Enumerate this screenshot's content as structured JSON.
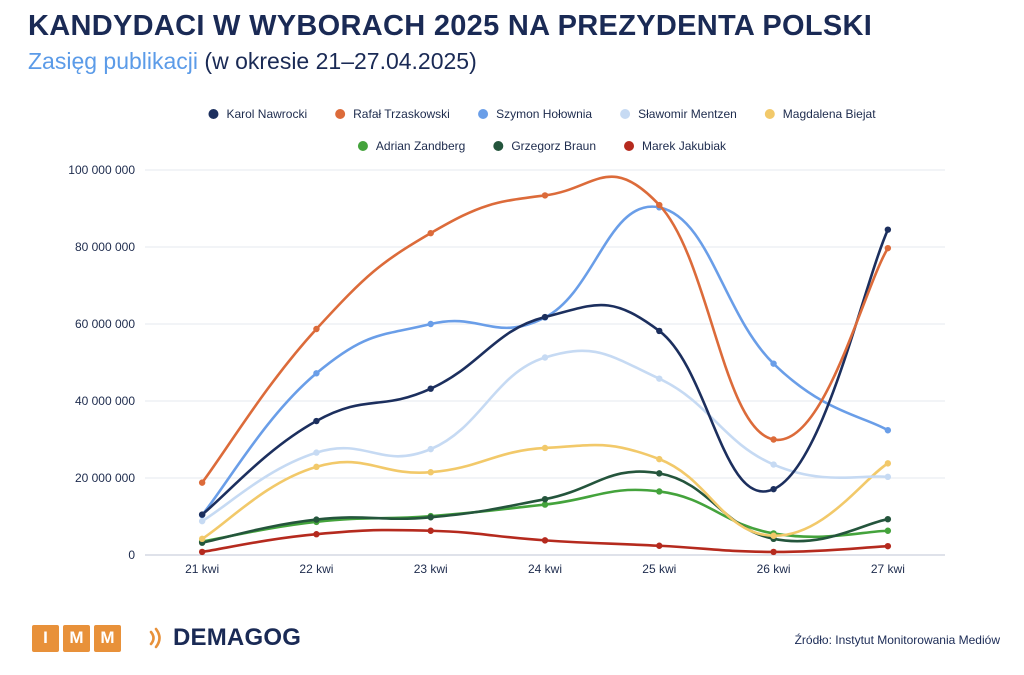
{
  "header": {
    "title": "KANDYDACI W WYBORACH 2025 NA PREZYDENTA POLSKI",
    "subtitle_accent": "Zasięg publikacji",
    "subtitle_rest": "(w okresie 21–27.04.2025)"
  },
  "footer": {
    "imm_letters": [
      "I",
      "M",
      "M"
    ],
    "demagog_label": "DEMAGOG",
    "source": "Źródło: Instytut Monitorowania Mediów"
  },
  "chart_data": {
    "type": "line",
    "smooth": true,
    "categories": [
      "21 kwi",
      "22 kwi",
      "23 kwi",
      "24 kwi",
      "25 kwi",
      "26 kwi",
      "27 kwi"
    ],
    "ylim": [
      0,
      100000000
    ],
    "yticks": [
      0,
      20000000,
      40000000,
      60000000,
      80000000,
      100000000
    ],
    "ytick_labels": [
      "0",
      "20 000 000",
      "40 000 000",
      "60 000 000",
      "80 000 000",
      "100 000 000"
    ],
    "grid": true,
    "legend_position": "top",
    "series": [
      {
        "name": "Karol Nawrocki",
        "color": "#1c2f5e",
        "values": [
          10500000,
          34800000,
          43200000,
          61800000,
          58200000,
          17100000,
          84500000
        ]
      },
      {
        "name": "Rafał Trzaskowski",
        "color": "#dc6b3a",
        "values": [
          18800000,
          58700000,
          83600000,
          93400000,
          90900000,
          30000000,
          79700000
        ]
      },
      {
        "name": "Szymon Hołownia",
        "color": "#6a9ee8",
        "values": [
          10400000,
          47200000,
          60000000,
          61700000,
          90300000,
          49700000,
          32400000
        ]
      },
      {
        "name": "Sławomir Mentzen",
        "color": "#c6daf3",
        "values": [
          8800000,
          26600000,
          27500000,
          51300000,
          45800000,
          23500000,
          20300000
        ]
      },
      {
        "name": "Magdalena Biejat",
        "color": "#f2c96a",
        "values": [
          4200000,
          22900000,
          21500000,
          27800000,
          24900000,
          5000000,
          23800000
        ]
      },
      {
        "name": "Adrian Zandberg",
        "color": "#44a33c",
        "values": [
          3500000,
          8600000,
          10100000,
          13100000,
          16500000,
          5600000,
          6300000
        ]
      },
      {
        "name": "Grzegorz Braun",
        "color": "#24553c",
        "values": [
          3200000,
          9200000,
          9800000,
          14500000,
          21200000,
          4200000,
          9300000
        ]
      },
      {
        "name": "Marek Jakubiak",
        "color": "#b52a1e",
        "values": [
          800000,
          5400000,
          6300000,
          3800000,
          2400000,
          800000,
          2300000
        ]
      }
    ]
  }
}
